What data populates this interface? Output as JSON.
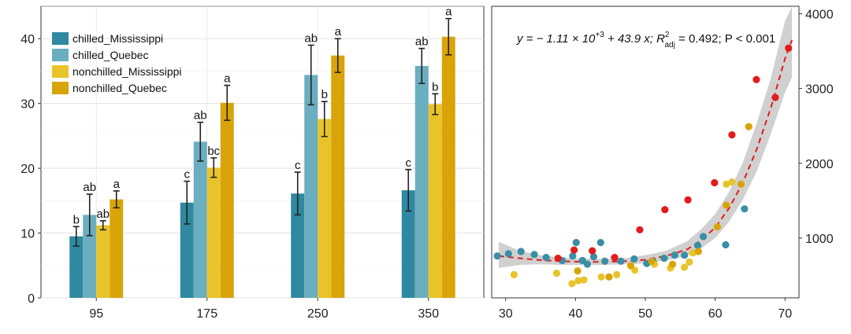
{
  "chart_data": [
    {
      "type": "bar",
      "title": "",
      "xlabel": "",
      "ylabel": "",
      "ylim": [
        0,
        45
      ],
      "yticks": [
        0,
        10,
        20,
        30,
        40
      ],
      "categories": [
        "95",
        "175",
        "250",
        "350"
      ],
      "legend_position": "top-left",
      "grid": true,
      "series": [
        {
          "name": "chilled_Mississippi",
          "color": "#2f89a0",
          "values": [
            9.5,
            14.7,
            16.1,
            16.6
          ],
          "errors": [
            1.5,
            3.3,
            3.3,
            3.2
          ],
          "letters": [
            "b",
            "c",
            "c",
            "c"
          ]
        },
        {
          "name": "chilled_Quebec",
          "color": "#6aaebf",
          "values": [
            12.8,
            24.1,
            34.4,
            35.8
          ],
          "errors": [
            3.2,
            3.0,
            4.6,
            2.7
          ],
          "letters": [
            "ab",
            "ab",
            "ab",
            "ab"
          ]
        },
        {
          "name": "nonchilled_Mississippi",
          "color": "#e8c42a",
          "values": [
            11.2,
            20.1,
            27.6,
            29.9
          ],
          "errors": [
            0.7,
            1.5,
            2.7,
            1.6
          ],
          "letters": [
            "ab",
            "bc",
            "b",
            "b"
          ]
        },
        {
          "name": "nonchilled_Quebec",
          "color": "#d9a40a",
          "values": [
            15.2,
            30.1,
            37.4,
            40.3
          ],
          "errors": [
            1.3,
            2.7,
            2.6,
            2.8
          ],
          "letters": [
            "a",
            "a",
            "a",
            "a"
          ]
        }
      ]
    },
    {
      "type": "scatter",
      "title": "",
      "xlabel": "",
      "ylabel": "",
      "xlim": [
        28,
        72
      ],
      "ylim": [
        200,
        4100
      ],
      "xticks": [
        30,
        40,
        50,
        60,
        70
      ],
      "yticks": [
        1000,
        2000,
        3000,
        4000
      ],
      "y_axis_side": "right",
      "grid": false,
      "annotation": {
        "formula_lhs": "y = − 1.11 × 10",
        "formula_exp": "+3",
        "formula_rest": " + 43.9 x; R",
        "r2_sup": "2",
        "r2_sub": "adj",
        "r2_value": " = 0.492; P < 0.001"
      },
      "fit": {
        "style": "dashed",
        "color": "#e41a1c",
        "band_color": "#c8c8c8",
        "x": [
          29,
          32,
          35,
          38,
          41,
          44,
          47,
          50,
          53,
          56,
          58,
          60,
          62,
          64,
          66,
          68,
          70,
          71
        ],
        "y": [
          760,
          730,
          705,
          690,
          682,
          680,
          690,
          710,
          760,
          850,
          970,
          1140,
          1400,
          1750,
          2200,
          2750,
          3400,
          3650
        ],
        "lower": [
          600,
          640,
          650,
          640,
          640,
          640,
          650,
          660,
          700,
          760,
          860,
          1000,
          1220,
          1520,
          1900,
          2400,
          2950,
          3150
        ],
        "upper": [
          950,
          830,
          770,
          740,
          725,
          720,
          730,
          770,
          830,
          960,
          1120,
          1320,
          1620,
          2020,
          2550,
          3150,
          3900,
          4200
        ]
      },
      "series": [
        {
          "name": "chilled_Mississippi",
          "color": "#3a8ea5",
          "points": [
            [
              28.8,
              760
            ],
            [
              30.4,
              790
            ],
            [
              32.2,
              820
            ],
            [
              34.1,
              780
            ],
            [
              35.8,
              740
            ],
            [
              38.1,
              700
            ],
            [
              39.6,
              760
            ],
            [
              40.1,
              940
            ],
            [
              41.0,
              700
            ],
            [
              41.7,
              650
            ],
            [
              42.6,
              750
            ],
            [
              43.6,
              940
            ],
            [
              44.2,
              690
            ],
            [
              46.5,
              690
            ],
            [
              48.4,
              720
            ],
            [
              50.2,
              660
            ],
            [
              51.1,
              690
            ],
            [
              52.7,
              730
            ],
            [
              54.2,
              770
            ],
            [
              55.6,
              770
            ],
            [
              57.5,
              900
            ],
            [
              58.3,
              1020
            ],
            [
              61.5,
              910
            ],
            [
              64.2,
              1390
            ]
          ]
        },
        {
          "name": "chilled_Quebec",
          "color": "#e41a1c",
          "points": [
            [
              37.5,
              730
            ],
            [
              39.8,
              840
            ],
            [
              42.4,
              830
            ],
            [
              45.6,
              740
            ],
            [
              49.2,
              1110
            ],
            [
              52.8,
              1380
            ],
            [
              56.1,
              1510
            ],
            [
              59.9,
              1740
            ],
            [
              62.4,
              2380
            ],
            [
              65.9,
              3120
            ],
            [
              68.6,
              2880
            ],
            [
              70.5,
              3540
            ]
          ]
        },
        {
          "name": "nonchilled_Mississippi",
          "color": "#e8c42a",
          "points": [
            [
              31.2,
              510
            ],
            [
              37.3,
              530
            ],
            [
              39.5,
              390
            ],
            [
              40.4,
              430
            ],
            [
              41.2,
              440
            ],
            [
              43.7,
              480
            ],
            [
              45.9,
              510
            ],
            [
              48.5,
              570
            ],
            [
              51.3,
              650
            ],
            [
              53.6,
              600
            ],
            [
              55.6,
              610
            ],
            [
              56.3,
              680
            ],
            [
              56.8,
              800
            ],
            [
              61.6,
              1720
            ],
            [
              62.4,
              1750
            ]
          ]
        },
        {
          "name": "nonchilled_Quebec",
          "color": "#d9a40a",
          "points": [
            [
              40.3,
              560
            ],
            [
              44.8,
              480
            ],
            [
              47.9,
              630
            ],
            [
              50.9,
              690
            ],
            [
              53.9,
              650
            ],
            [
              57.6,
              820
            ],
            [
              60.3,
              1150
            ],
            [
              61.6,
              1440
            ],
            [
              63.7,
              1720
            ],
            [
              64.8,
              2490
            ]
          ]
        }
      ]
    }
  ]
}
